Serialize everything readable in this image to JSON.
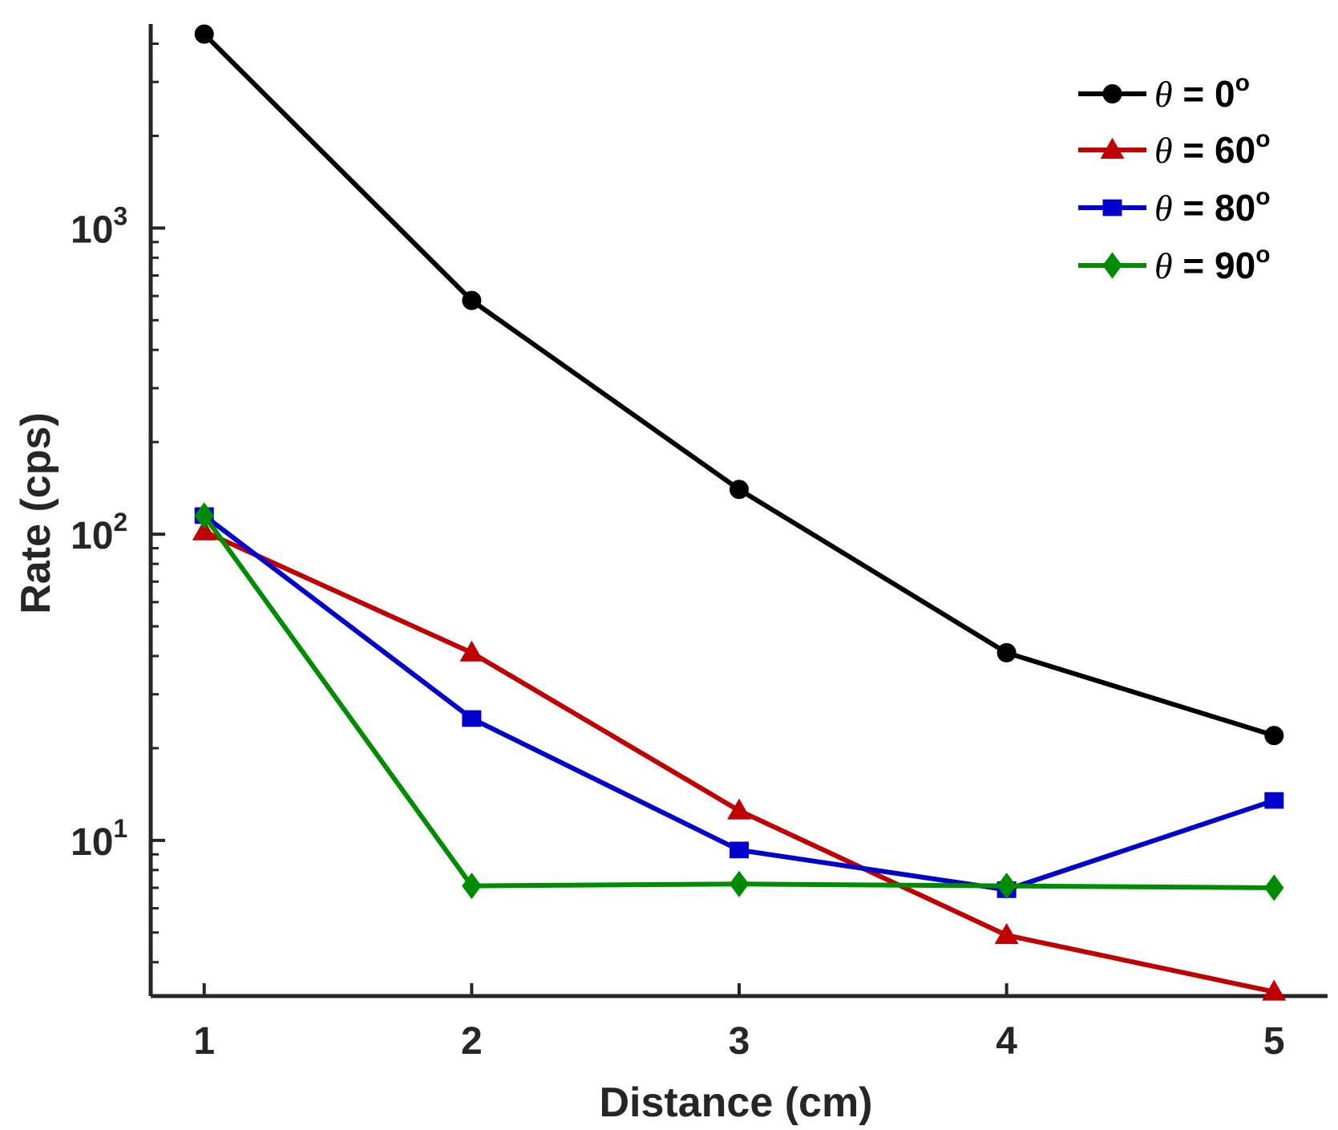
{
  "chart_data": {
    "type": "line",
    "title": "",
    "xlabel": "Distance (cm)",
    "ylabel": "Rate (cps)",
    "x": [
      1,
      2,
      3,
      4,
      5
    ],
    "x_tick_labels": [
      "1",
      "2",
      "3",
      "4",
      "5"
    ],
    "xlim": [
      0.8,
      5.2
    ],
    "yscale": "log",
    "ylim": [
      3.1,
      4500
    ],
    "y_ticks": [
      {
        "value": 10,
        "base": "10",
        "exp": "1"
      },
      {
        "value": 100,
        "base": "10",
        "exp": "2"
      },
      {
        "value": 1000,
        "base": "10",
        "exp": "3"
      }
    ],
    "grid": false,
    "legend_position": "top-right",
    "series": [
      {
        "name": "θ = 0°",
        "label_var": "θ",
        "label_value": " = 0",
        "label_unit": "o",
        "color": "#000000",
        "marker": "circle",
        "values": [
          4300,
          580,
          140,
          41,
          22
        ]
      },
      {
        "name": "θ = 60°",
        "label_var": "θ",
        "label_value": " = 60",
        "label_unit": "o",
        "color": "#c00000",
        "marker": "triangle",
        "values": [
          102,
          41,
          12.5,
          4.9,
          3.2
        ]
      },
      {
        "name": "θ = 80°",
        "label_var": "θ",
        "label_value": " = 80",
        "label_unit": "o",
        "color": "#0000cc",
        "marker": "square",
        "values": [
          115,
          25,
          9.3,
          6.9,
          13.5
        ]
      },
      {
        "name": "θ = 90°",
        "label_var": "θ",
        "label_value": " = 90",
        "label_unit": "o",
        "color": "#008c00",
        "marker": "diamond",
        "values": [
          115,
          7.1,
          7.2,
          7.1,
          7.0
        ]
      }
    ]
  }
}
